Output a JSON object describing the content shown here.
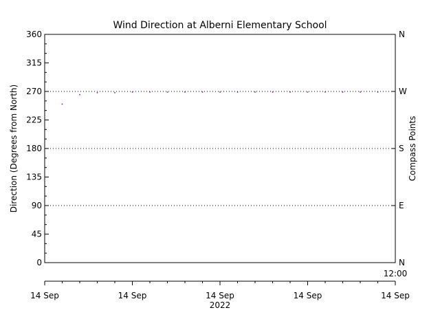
{
  "chart_data": {
    "type": "scatter",
    "title": "Wind Direction at Alberni Elementary School",
    "ylabel": "Direction (Degrees from North)",
    "y2label": "Compass Points",
    "ylim": [
      0,
      360
    ],
    "yticks": [
      0,
      45,
      90,
      135,
      180,
      225,
      270,
      315,
      360
    ],
    "compass_ticks": [
      {
        "value": 0,
        "label": "N"
      },
      {
        "value": 90,
        "label": "E"
      },
      {
        "value": 180,
        "label": "S"
      },
      {
        "value": 270,
        "label": "W"
      },
      {
        "value": 360,
        "label": "N"
      }
    ],
    "gridlines_y": [
      90,
      180,
      270
    ],
    "xlim": [
      0,
      20
    ],
    "x_tick_labels": [
      {
        "value": 0,
        "label": "14 Sep"
      },
      {
        "value": 5,
        "label": "14 Sep"
      },
      {
        "value": 10,
        "label": "14 Sep"
      },
      {
        "value": 15,
        "label": "14 Sep"
      },
      {
        "value": 20,
        "label": "14 Sep"
      }
    ],
    "x_time_label": "12:00",
    "x_year_label": "2022",
    "point_color": "#800080",
    "points": [
      {
        "x": 1,
        "y": 250
      },
      {
        "x": 2,
        "y": 265
      },
      {
        "x": 3,
        "y": 268
      },
      {
        "x": 4,
        "y": 268
      },
      {
        "x": 5,
        "y": 269
      },
      {
        "x": 6,
        "y": 269
      },
      {
        "x": 7,
        "y": 269
      },
      {
        "x": 8,
        "y": 269
      },
      {
        "x": 9,
        "y": 269
      },
      {
        "x": 10,
        "y": 269
      },
      {
        "x": 11,
        "y": 269
      },
      {
        "x": 12,
        "y": 269
      },
      {
        "x": 13,
        "y": 269
      },
      {
        "x": 14,
        "y": 269
      },
      {
        "x": 15,
        "y": 269
      },
      {
        "x": 16,
        "y": 269
      },
      {
        "x": 17,
        "y": 269
      },
      {
        "x": 18,
        "y": 269
      },
      {
        "x": 19,
        "y": 269
      }
    ]
  }
}
